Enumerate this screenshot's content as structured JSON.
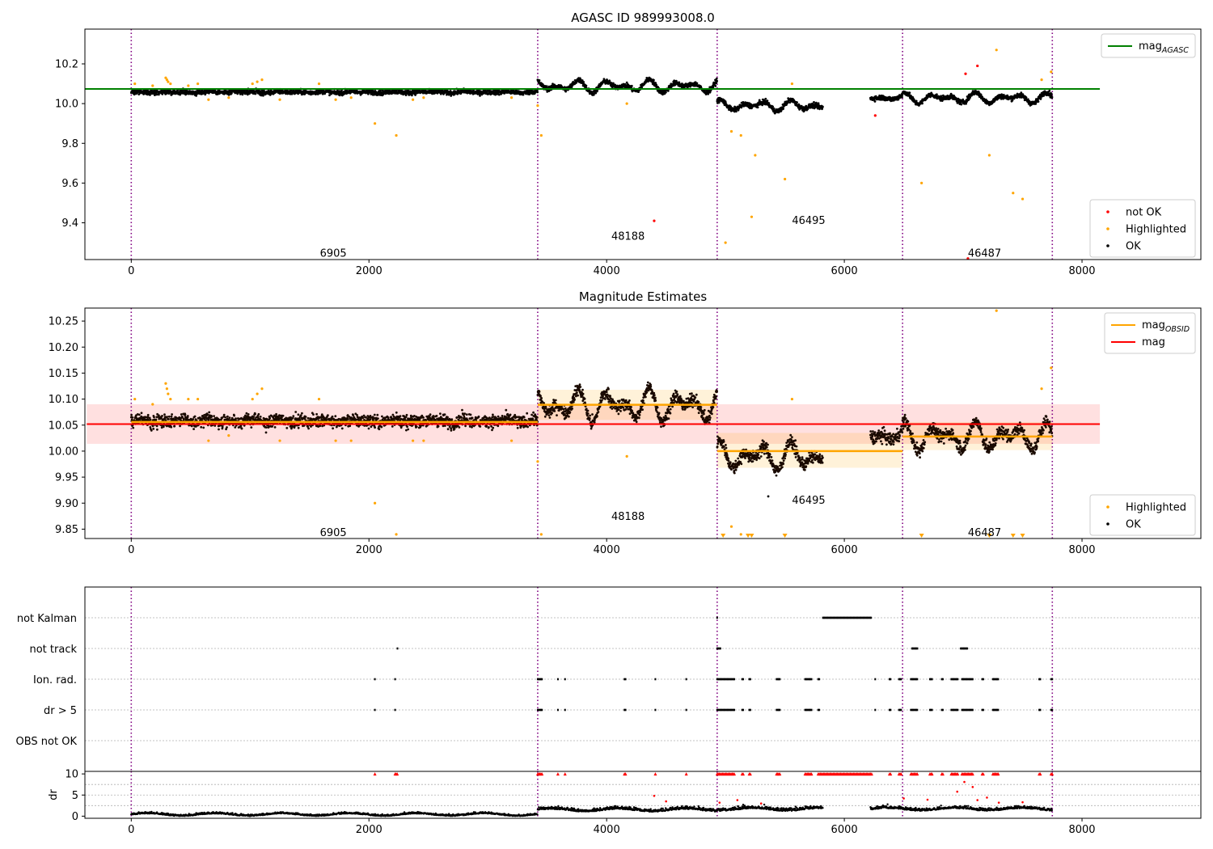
{
  "chart_data": [
    {
      "type": "scatter",
      "title": "AGASC ID 989993008.0",
      "xlim": [
        -390,
        9000
      ],
      "ylim": [
        9.215,
        10.375
      ],
      "xticks": [
        0,
        2000,
        4000,
        6000,
        8000
      ],
      "xtick_labels": [
        "0",
        "2000",
        "4000",
        "6000",
        "8000"
      ],
      "yticks": [
        9.4,
        9.6,
        9.8,
        10.0,
        10.2
      ],
      "ytick_labels": [
        "9.4",
        "9.6",
        "9.8",
        "10.0",
        "10.2"
      ],
      "obs_boundaries": [
        0,
        3420,
        4930,
        6490,
        7750
      ],
      "obs_labels": [
        {
          "text": "6905",
          "x": 1700,
          "y": 9.245
        },
        {
          "text": "48188",
          "x": 4180,
          "y": 9.33
        },
        {
          "text": "46495",
          "x": 5700,
          "y": 9.41
        },
        {
          "text": "46487",
          "x": 7180,
          "y": 9.245
        }
      ],
      "mag_agasc": 10.074,
      "legend_upper": [
        {
          "name": "mag_AGASC",
          "base": "mag",
          "sub": "AGASC",
          "color": "#008000"
        }
      ],
      "legend_lower": [
        {
          "name": "not OK",
          "color": "#ff0000"
        },
        {
          "name": "Highlighted",
          "color": "#ffa500"
        },
        {
          "name": "OK",
          "color": "#000000"
        }
      ],
      "segments": [
        {
          "x0": 0,
          "x1": 3420,
          "mean": 10.058,
          "amp": 0.004,
          "noise": 0.012
        },
        {
          "x0": 3420,
          "x1": 4930,
          "mean": 10.088,
          "amp": 0.035,
          "noise": 0.012
        },
        {
          "x0": 4930,
          "x1": 5820,
          "mean": 9.99,
          "amp": 0.03,
          "noise": 0.012
        },
        {
          "x0": 6220,
          "x1": 6490,
          "mean": 10.03,
          "amp": 0.015,
          "noise": 0.012
        },
        {
          "x0": 6490,
          "x1": 7750,
          "mean": 10.028,
          "amp": 0.03,
          "noise": 0.012
        }
      ],
      "highlighted_points": [
        [
          30,
          10.1
        ],
        [
          180,
          10.09
        ],
        [
          290,
          10.13
        ],
        [
          300,
          10.12
        ],
        [
          310,
          10.11
        ],
        [
          330,
          10.1
        ],
        [
          480,
          10.09
        ],
        [
          560,
          10.1
        ],
        [
          650,
          10.02
        ],
        [
          820,
          10.03
        ],
        [
          1020,
          10.1
        ],
        [
          1060,
          10.11
        ],
        [
          1100,
          10.12
        ],
        [
          1250,
          10.02
        ],
        [
          1580,
          10.1
        ],
        [
          1720,
          10.02
        ],
        [
          1850,
          10.03
        ],
        [
          2050,
          9.9
        ],
        [
          2230,
          9.84
        ],
        [
          2370,
          10.02
        ],
        [
          2460,
          10.03
        ],
        [
          3200,
          10.03
        ],
        [
          3420,
          9.99
        ],
        [
          3450,
          9.84
        ],
        [
          4170,
          10.0
        ],
        [
          5000,
          9.3
        ],
        [
          5050,
          9.86
        ],
        [
          5130,
          9.84
        ],
        [
          5250,
          9.74
        ],
        [
          5220,
          9.43
        ],
        [
          5500,
          9.62
        ],
        [
          5560,
          10.1
        ],
        [
          6650,
          9.6
        ],
        [
          7220,
          9.74
        ],
        [
          7280,
          10.27
        ],
        [
          7420,
          9.55
        ],
        [
          7500,
          9.52
        ],
        [
          7660,
          10.12
        ],
        [
          7740,
          10.16
        ]
      ],
      "notok_points": [
        [
          4400,
          9.41
        ],
        [
          6260,
          9.94
        ],
        [
          7020,
          10.15
        ],
        [
          7120,
          10.19
        ],
        [
          7040,
          9.22
        ]
      ]
    },
    {
      "type": "scatter",
      "title": "Magnitude Estimates",
      "xlim": [
        -390,
        9000
      ],
      "ylim": [
        9.832,
        10.275
      ],
      "xticks": [
        0,
        2000,
        4000,
        6000,
        8000
      ],
      "xtick_labels": [
        "0",
        "2000",
        "4000",
        "6000",
        "8000"
      ],
      "yticks": [
        9.85,
        9.9,
        9.95,
        10.0,
        10.05,
        10.1,
        10.15,
        10.2,
        10.25
      ],
      "ytick_labels": [
        "9.85",
        "9.90",
        "9.95",
        "10.00",
        "10.05",
        "10.10",
        "10.15",
        "10.20",
        "10.25"
      ],
      "obs_boundaries": [
        0,
        3420,
        4930,
        6490,
        7750
      ],
      "obs_labels": [
        {
          "text": "6905",
          "x": 1700,
          "y": 9.843
        },
        {
          "text": "48188",
          "x": 4180,
          "y": 9.874
        },
        {
          "text": "46495",
          "x": 5700,
          "y": 9.905
        },
        {
          "text": "46487",
          "x": 7180,
          "y": 9.843
        }
      ],
      "mag": 10.052,
      "mag_band": [
        10.014,
        10.09
      ],
      "mag_obsid": [
        {
          "x0": 0,
          "x1": 3420,
          "value": 10.056,
          "lo": 10.05,
          "hi": 10.062
        },
        {
          "x0": 3420,
          "x1": 4930,
          "value": 10.089,
          "lo": 10.06,
          "hi": 10.118
        },
        {
          "x0": 4930,
          "x1": 6490,
          "value": 10.0,
          "lo": 9.968,
          "hi": 10.035
        },
        {
          "x0": 6490,
          "x1": 7750,
          "value": 10.028,
          "lo": 10.002,
          "hi": 10.056
        }
      ],
      "legend_upper": [
        {
          "name": "mag_OBSID",
          "base": "mag",
          "sub": "OBSID",
          "color": "#ffa500"
        },
        {
          "name": "mag",
          "base": "mag",
          "sub": "",
          "color": "#ff0000"
        }
      ],
      "legend_lower": [
        {
          "name": "Highlighted",
          "color": "#ffa500"
        },
        {
          "name": "OK",
          "color": "#000000"
        }
      ],
      "segments": [
        {
          "x0": 0,
          "x1": 3420,
          "mean": 10.058,
          "amp": 0.004,
          "noise": 0.012
        },
        {
          "x0": 3420,
          "x1": 4930,
          "mean": 10.088,
          "amp": 0.035,
          "noise": 0.012
        },
        {
          "x0": 4930,
          "x1": 5820,
          "mean": 9.99,
          "amp": 0.03,
          "noise": 0.012
        },
        {
          "x0": 6220,
          "x1": 6490,
          "mean": 10.03,
          "amp": 0.015,
          "noise": 0.012
        },
        {
          "x0": 6490,
          "x1": 7750,
          "mean": 10.028,
          "amp": 0.03,
          "noise": 0.012
        }
      ],
      "highlighted_points": [
        [
          30,
          10.1
        ],
        [
          180,
          10.09
        ],
        [
          290,
          10.13
        ],
        [
          300,
          10.12
        ],
        [
          310,
          10.11
        ],
        [
          330,
          10.1
        ],
        [
          480,
          10.1
        ],
        [
          560,
          10.1
        ],
        [
          650,
          10.02
        ],
        [
          820,
          10.03
        ],
        [
          1020,
          10.1
        ],
        [
          1060,
          10.11
        ],
        [
          1100,
          10.12
        ],
        [
          1250,
          10.02
        ],
        [
          1580,
          10.1
        ],
        [
          1720,
          10.02
        ],
        [
          1850,
          10.02
        ],
        [
          2050,
          9.9
        ],
        [
          2230,
          9.84
        ],
        [
          2370,
          10.02
        ],
        [
          2460,
          10.02
        ],
        [
          3200,
          10.02
        ],
        [
          3420,
          9.98
        ],
        [
          3450,
          9.84
        ],
        [
          4170,
          9.99
        ],
        [
          5050,
          9.855
        ],
        [
          5130,
          9.84
        ],
        [
          5560,
          10.1
        ],
        [
          7280,
          10.27
        ],
        [
          7660,
          10.12
        ],
        [
          7740,
          10.16
        ]
      ],
      "clipped_markers": [
        4980,
        5190,
        5220,
        5500,
        6650,
        7220,
        7420,
        7500
      ],
      "extra_ok_points": [
        [
          5360,
          9.913
        ]
      ]
    },
    {
      "type": "scatter",
      "xlim": [
        -390,
        9000
      ],
      "xticks": [
        0,
        2000,
        4000,
        6000,
        8000
      ],
      "xtick_labels": [
        "0",
        "2000",
        "4000",
        "6000",
        "8000"
      ],
      "obs_boundaries": [
        0,
        3420,
        4930,
        6490,
        7750
      ],
      "flag_labels": [
        "not Kalman",
        "not track",
        "Ion. rad.",
        "dr > 5",
        "OBS not OK"
      ],
      "flag_points": {
        "not Kalman": [
          [
            4930,
            4930
          ],
          [
            5820,
            6230
          ]
        ],
        "not track": [
          [
            2240,
            2240
          ],
          [
            4930,
            4960
          ],
          [
            6570,
            6620
          ],
          [
            6980,
            7040
          ]
        ],
        "Ion. rad.": [
          [
            2050,
            2050
          ],
          [
            2220,
            2220
          ],
          [
            3420,
            3460
          ],
          [
            3590,
            3590
          ],
          [
            3650,
            3650
          ],
          [
            4150,
            4160
          ],
          [
            4410,
            4410
          ],
          [
            4670,
            4670
          ],
          [
            4930,
            5080
          ],
          [
            5140,
            5150
          ],
          [
            5200,
            5210
          ],
          [
            5430,
            5460
          ],
          [
            5670,
            5730
          ],
          [
            5780,
            5790
          ],
          [
            6260,
            6260
          ],
          [
            6380,
            6390
          ],
          [
            6460,
            6480
          ],
          [
            6560,
            6620
          ],
          [
            6720,
            6740
          ],
          [
            6820,
            6830
          ],
          [
            6900,
            6960
          ],
          [
            6990,
            7080
          ],
          [
            7160,
            7170
          ],
          [
            7250,
            7300
          ],
          [
            7640,
            7650
          ],
          [
            7740,
            7750
          ]
        ],
        "dr > 5": [
          [
            2050,
            2050
          ],
          [
            2220,
            2220
          ],
          [
            3420,
            3460
          ],
          [
            3590,
            3590
          ],
          [
            3650,
            3650
          ],
          [
            4150,
            4160
          ],
          [
            4410,
            4410
          ],
          [
            4670,
            4670
          ],
          [
            4930,
            5080
          ],
          [
            5140,
            5150
          ],
          [
            5200,
            5210
          ],
          [
            5430,
            5460
          ],
          [
            5670,
            5730
          ],
          [
            5780,
            5790
          ],
          [
            6260,
            6260
          ],
          [
            6380,
            6390
          ],
          [
            6460,
            6480
          ],
          [
            6560,
            6620
          ],
          [
            6720,
            6740
          ],
          [
            6820,
            6830
          ],
          [
            6900,
            6960
          ],
          [
            6990,
            7080
          ],
          [
            7160,
            7170
          ],
          [
            7250,
            7300
          ],
          [
            7640,
            7650
          ],
          [
            7740,
            7750
          ]
        ],
        "OBS not OK": []
      },
      "dr": {
        "ylabel": "dr",
        "yticks": [
          0,
          5,
          10
        ],
        "ytick_labels": [
          "0",
          "5",
          "10"
        ],
        "ylim": [
          -0.5,
          10.6
        ],
        "ok_segments": [
          {
            "x0": 0,
            "x1": 3420,
            "mean": 0.45,
            "noise": 0.35
          },
          {
            "x0": 3420,
            "x1": 4930,
            "mean": 1.6,
            "noise": 0.6
          },
          {
            "x0": 4930,
            "x1": 5820,
            "mean": 1.8,
            "noise": 0.7
          },
          {
            "x0": 6220,
            "x1": 6490,
            "mean": 1.8,
            "noise": 0.6
          },
          {
            "x0": 6490,
            "x1": 7750,
            "mean": 1.8,
            "noise": 0.6
          }
        ],
        "red_clipped": [
          [
            2050,
            2050
          ],
          [
            2220,
            2240
          ],
          [
            3420,
            3460
          ],
          [
            3590,
            3590
          ],
          [
            3650,
            3650
          ],
          [
            4150,
            4160
          ],
          [
            4410,
            4410
          ],
          [
            4670,
            4670
          ],
          [
            4930,
            5080
          ],
          [
            5140,
            5150
          ],
          [
            5200,
            5210
          ],
          [
            5430,
            5460
          ],
          [
            5670,
            5730
          ],
          [
            5780,
            6230
          ],
          [
            6380,
            6390
          ],
          [
            6460,
            6480
          ],
          [
            6560,
            6620
          ],
          [
            6720,
            6740
          ],
          [
            6820,
            6830
          ],
          [
            6900,
            6960
          ],
          [
            6990,
            7080
          ],
          [
            7160,
            7170
          ],
          [
            7250,
            7300
          ],
          [
            7640,
            7650
          ],
          [
            7740,
            7750
          ]
        ],
        "red_points": [
          [
            4400,
            4.8
          ],
          [
            4500,
            3.5
          ],
          [
            4950,
            3.2
          ],
          [
            5100,
            3.8
          ],
          [
            5300,
            3.0
          ],
          [
            6500,
            4.2
          ],
          [
            6700,
            3.9
          ],
          [
            6950,
            5.8
          ],
          [
            7010,
            8.1
          ],
          [
            7080,
            6.9
          ],
          [
            7120,
            3.8
          ],
          [
            7200,
            4.4
          ],
          [
            7300,
            3.2
          ],
          [
            7500,
            3.3
          ]
        ]
      }
    }
  ]
}
